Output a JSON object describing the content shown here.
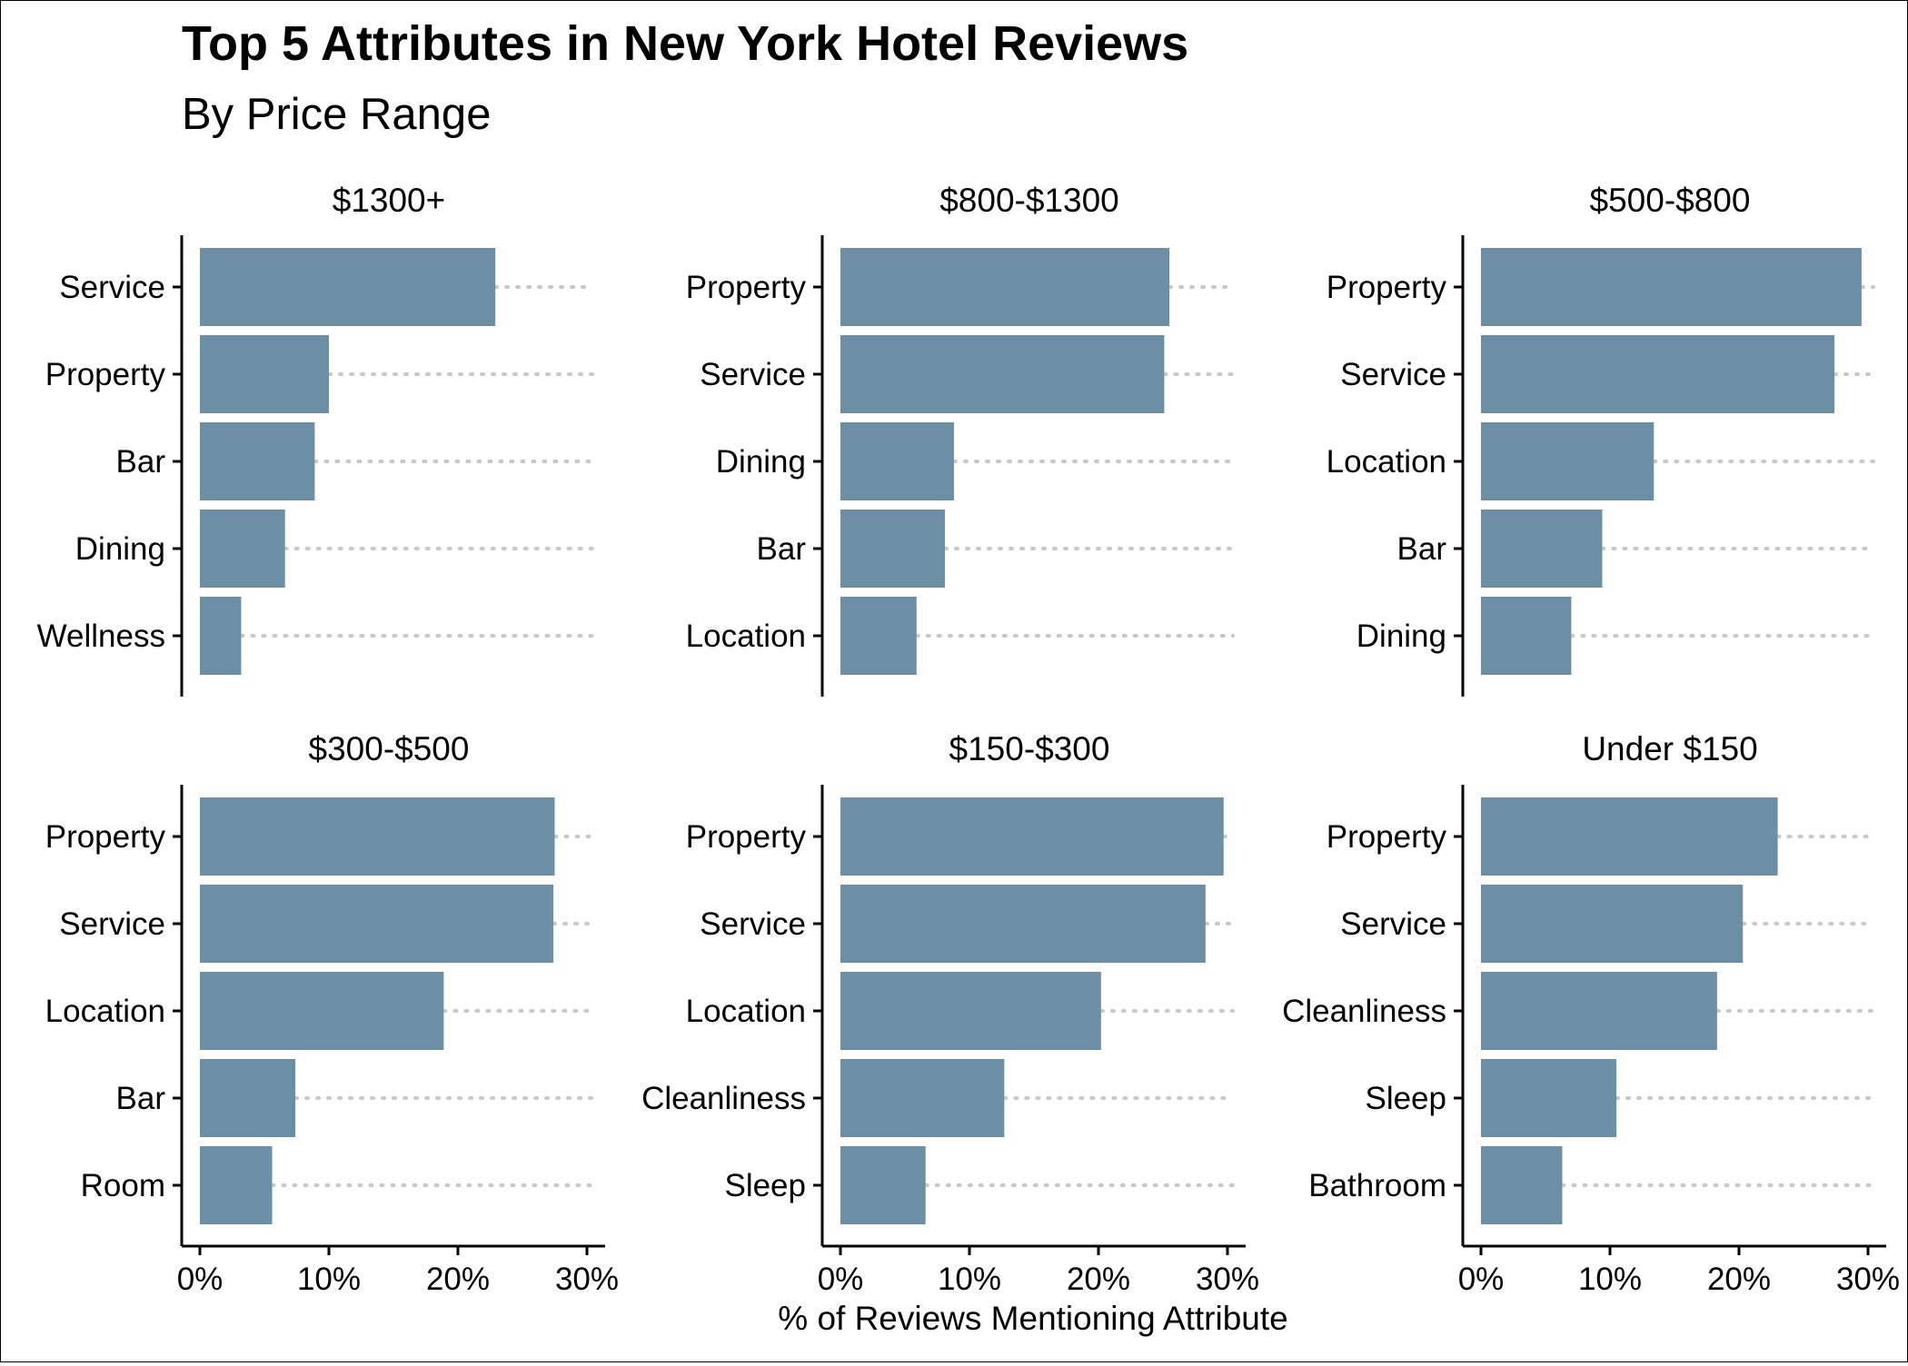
{
  "chart_data": {
    "type": "bar",
    "orientation": "horizontal",
    "title": "Top 5 Attributes in New York Hotel Reviews",
    "subtitle": "By Price Range",
    "xlabel": "% of Reviews Mentioning Attribute",
    "xlim": [
      0,
      30
    ],
    "xticks": [
      "0%",
      "10%",
      "20%",
      "30%"
    ],
    "bar_color": "#6d8fa5",
    "guide_color": "#c8c8c8",
    "facets": [
      {
        "label": "$1300+",
        "categories": [
          "Service",
          "Property",
          "Bar",
          "Dining",
          "Wellness"
        ],
        "values": [
          22.9,
          10.0,
          8.9,
          6.6,
          3.2
        ]
      },
      {
        "label": "$800-$1300",
        "categories": [
          "Property",
          "Service",
          "Dining",
          "Bar",
          "Location"
        ],
        "values": [
          25.5,
          25.1,
          8.8,
          8.1,
          5.9
        ]
      },
      {
        "label": "$500-$800",
        "categories": [
          "Property",
          "Service",
          "Location",
          "Bar",
          "Dining"
        ],
        "values": [
          29.5,
          27.4,
          13.4,
          9.4,
          7.0
        ]
      },
      {
        "label": "$300-$500",
        "categories": [
          "Property",
          "Service",
          "Location",
          "Bar",
          "Room"
        ],
        "values": [
          27.5,
          27.4,
          18.9,
          7.4,
          5.6
        ]
      },
      {
        "label": "$150-$300",
        "categories": [
          "Property",
          "Service",
          "Location",
          "Cleanliness",
          "Sleep"
        ],
        "values": [
          29.7,
          28.3,
          20.2,
          12.7,
          6.6
        ]
      },
      {
        "label": "Under $150",
        "categories": [
          "Property",
          "Service",
          "Cleanliness",
          "Sleep",
          "Bathroom"
        ],
        "values": [
          23.0,
          20.3,
          18.3,
          10.5,
          6.3
        ]
      }
    ]
  }
}
